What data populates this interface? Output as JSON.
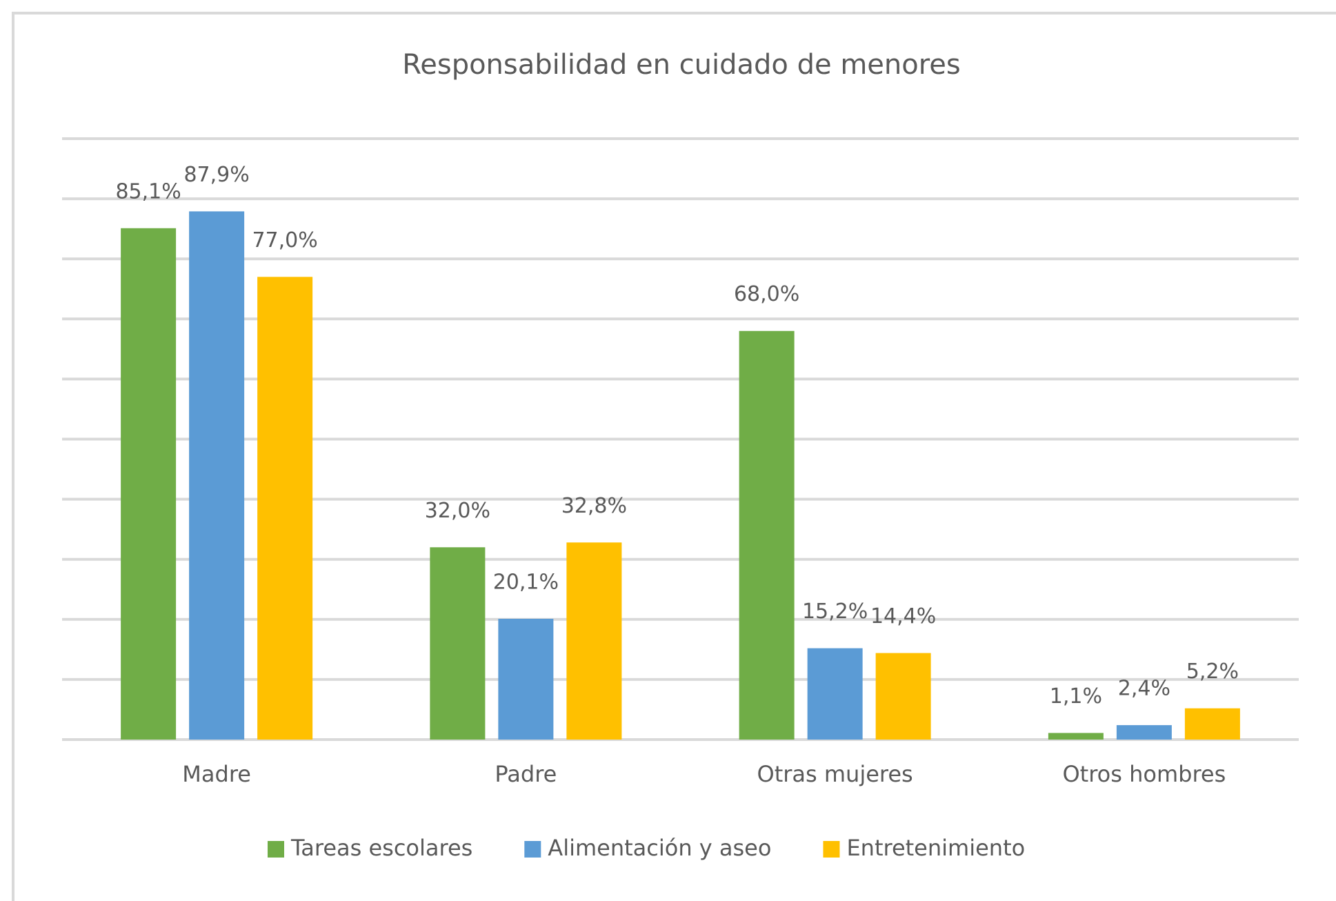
{
  "chart_data": {
    "type": "bar",
    "title": "Responsabilidad en cuidado de menores",
    "categories": [
      "Madre",
      "Padre",
      "Otras mujeres",
      "Otros hombres"
    ],
    "series": [
      {
        "name": "Tareas escolares",
        "color": "#70ad47",
        "values": [
          85.1,
          32.0,
          68.0,
          1.1
        ],
        "value_labels": [
          "85,1%",
          "32,0%",
          "68,0%",
          "1,1%"
        ]
      },
      {
        "name": "Alimentación y aseo",
        "color": "#5b9bd5",
        "values": [
          87.9,
          20.1,
          15.2,
          2.4
        ],
        "value_labels": [
          "87,9%",
          "20,1%",
          "15,2%",
          "2,4%"
        ]
      },
      {
        "name": "Entretenimiento",
        "color": "#ffc000",
        "values": [
          77.0,
          32.8,
          14.4,
          5.2
        ],
        "value_labels": [
          "77,0%",
          "32,8%",
          "14,4%",
          "5,2%"
        ]
      }
    ],
    "ylim": [
      0,
      100
    ],
    "yticks": [
      0,
      10,
      20,
      30,
      40,
      50,
      60,
      70,
      80,
      90,
      100
    ],
    "grid": true,
    "legend": "bottom"
  }
}
